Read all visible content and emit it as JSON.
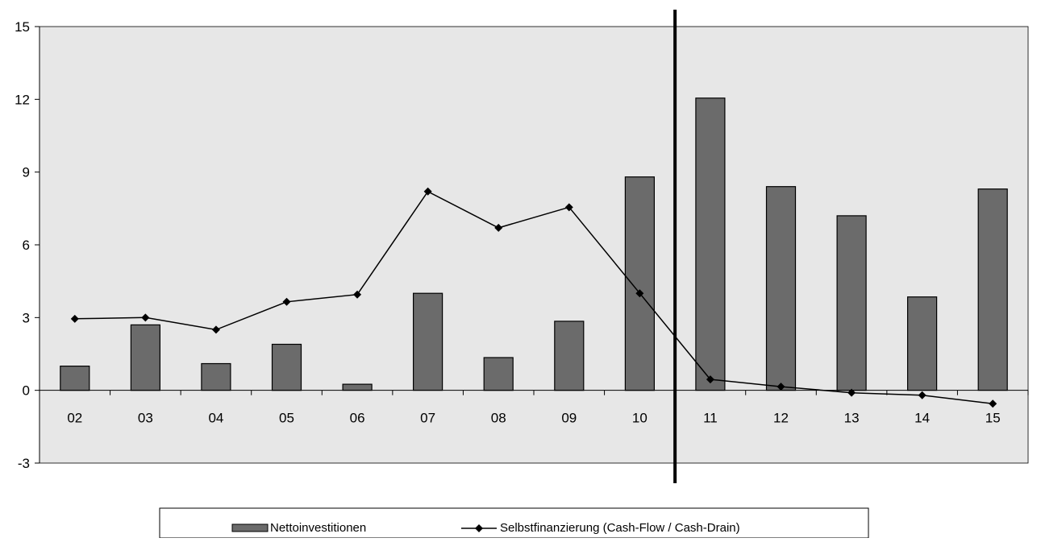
{
  "chart_data": {
    "type": "bar",
    "categories": [
      "02",
      "03",
      "04",
      "05",
      "06",
      "07",
      "08",
      "09",
      "10",
      "11",
      "12",
      "13",
      "14",
      "15"
    ],
    "series": [
      {
        "name": "Nettoinvestitionen",
        "type": "bar",
        "color": "#6b6b6b",
        "values": [
          1.0,
          2.7,
          1.1,
          1.9,
          0.25,
          4.0,
          1.35,
          2.85,
          8.8,
          12.05,
          8.4,
          7.2,
          3.85,
          8.3
        ]
      },
      {
        "name": "Selbstfinanzierung (Cash-Flow / Cash-Drain)",
        "type": "line",
        "color": "#000000",
        "marker": "diamond",
        "values": [
          2.95,
          3.0,
          2.5,
          3.65,
          3.95,
          8.2,
          6.7,
          7.55,
          4.0,
          0.45,
          0.15,
          -0.1,
          -0.2,
          -0.55
        ]
      }
    ],
    "ylim": [
      -3,
      15
    ],
    "yticks": [
      "-3",
      "0",
      "3",
      "6",
      "9",
      "12",
      "15"
    ],
    "ytick_values": [
      -3,
      0,
      3,
      6,
      9,
      12,
      15
    ],
    "divider_after_category": "10",
    "plot_background": "#e7e7e7",
    "legend_placement": "bottom",
    "grid": false,
    "title": "",
    "xlabel": "",
    "ylabel": ""
  }
}
